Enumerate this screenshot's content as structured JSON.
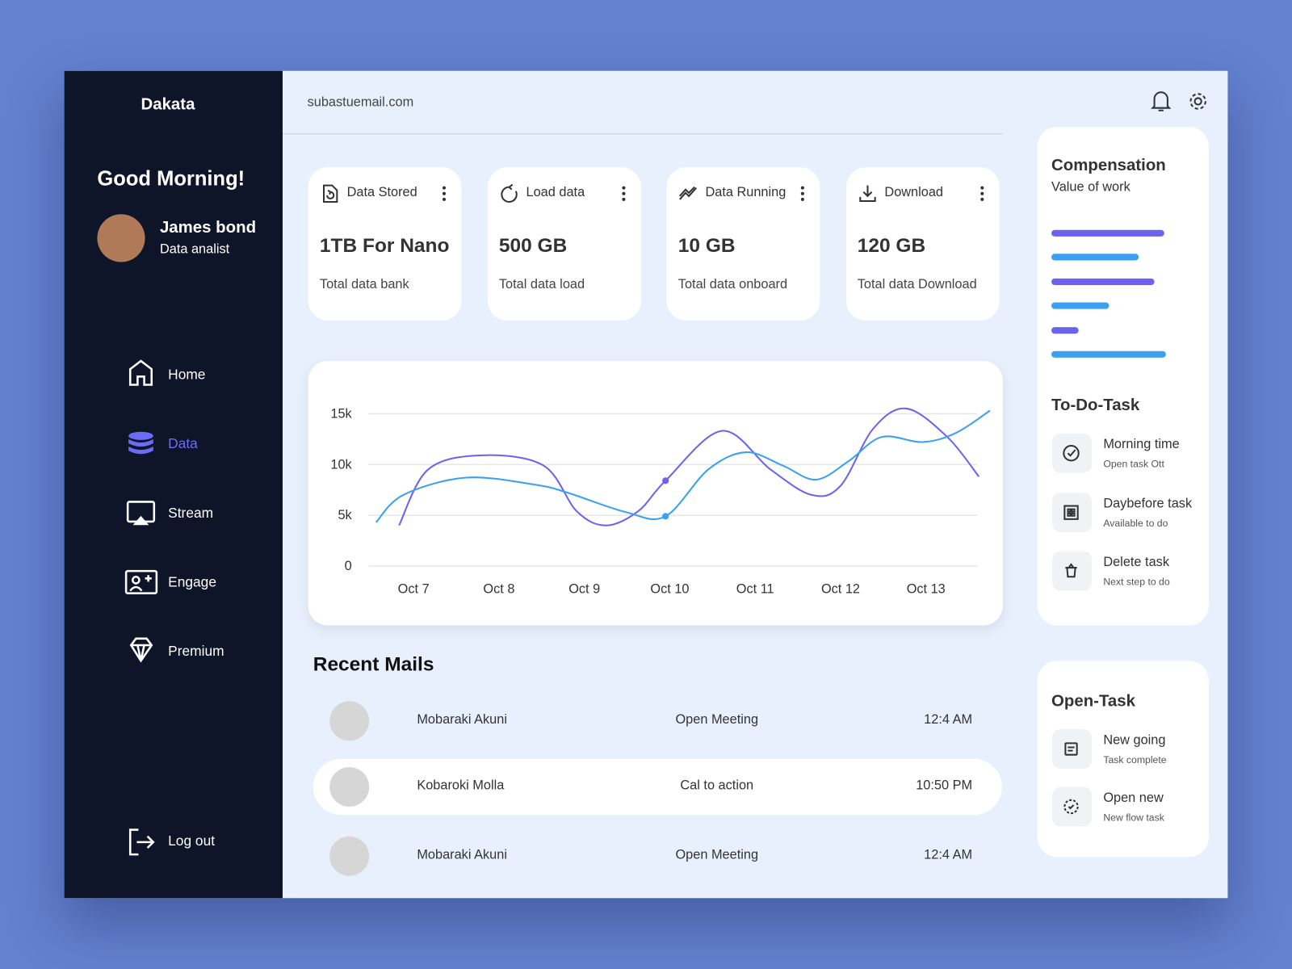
{
  "sidebar": {
    "brand": "Dakata",
    "greeting": "Good Morning!",
    "user": {
      "name": "James bond",
      "role": "Data analist"
    },
    "nav": [
      "Home",
      "Data",
      "Stream",
      "Engage",
      "Premium"
    ],
    "logout": "Log out"
  },
  "header": {
    "email": "subastuemail.com"
  },
  "stats": [
    {
      "title": "Data Stored",
      "value": "1TB For Nano",
      "caption": "Total data bank"
    },
    {
      "title": "Load data",
      "value": "500 GB",
      "caption": "Total data load"
    },
    {
      "title": "Data Running",
      "value": "10 GB",
      "caption": "Total data onboard"
    },
    {
      "title": "Download",
      "value": "120 GB",
      "caption": "Total data Download"
    }
  ],
  "chart_data": {
    "type": "line",
    "xlim": [
      6.47,
      13.6
    ],
    "ylim": [
      0,
      15000
    ],
    "xticks": [
      {
        "value": 7,
        "label": "Oct 7"
      },
      {
        "value": 8,
        "label": "Oct 8"
      },
      {
        "value": 9,
        "label": "Oct 9"
      },
      {
        "value": 10,
        "label": "Oct 10"
      },
      {
        "value": 11,
        "label": "Oct 11"
      },
      {
        "value": 12,
        "label": "Oct 12"
      },
      {
        "value": 13,
        "label": "Oct 13"
      }
    ],
    "yticks": [
      0,
      {
        "value": 5000,
        "label": "5k"
      },
      {
        "value": 10000,
        "label": "10k"
      },
      {
        "value": 15000,
        "label": "15k"
      }
    ],
    "grid": true,
    "highlight_x": 9.95,
    "series": [
      {
        "color": "#6b63f0",
        "x": [
          6.83,
          7.17,
          7.8,
          8.52,
          8.91,
          9.25,
          9.63,
          9.95,
          10.61,
          11.18,
          11.66,
          12.0,
          12.38,
          12.77,
          13.25,
          13.62
        ],
        "values": [
          4000,
          9500,
          10900,
          9900,
          5400,
          4000,
          5400,
          8400,
          13300,
          9500,
          7000,
          7900,
          13500,
          15500,
          12700,
          8800
        ]
      },
      {
        "color": "#3aa0f2",
        "x": [
          6.56,
          6.88,
          7.61,
          8.43,
          8.81,
          9.49,
          9.95,
          10.45,
          10.89,
          11.32,
          11.71,
          12.09,
          12.48,
          12.96,
          13.35,
          13.75
        ],
        "values": [
          4300,
          7000,
          8700,
          8000,
          7200,
          5300,
          4900,
          9500,
          11200,
          9900,
          8500,
          10300,
          12700,
          12200,
          13100,
          15300
        ]
      }
    ]
  },
  "recent_mails": {
    "title": "Recent Mails",
    "rows": [
      {
        "name": "Mobaraki Akuni",
        "subject": "Open Meeting",
        "time": "12:4 AM"
      },
      {
        "name": "Kobaroki Molla",
        "subject": "Cal to action",
        "time": "10:50 PM"
      },
      {
        "name": "Mobaraki Akuni",
        "subject": "Open Meeting",
        "time": "12:4 AM"
      }
    ]
  },
  "compensation": {
    "title": "Compensation",
    "subtitle": "Value of work"
  },
  "todo": {
    "title": "To-Do-Task",
    "items": [
      {
        "title": "Morning time",
        "subtitle": "Open task Ott"
      },
      {
        "title": "Daybefore task",
        "subtitle": "Available to do"
      },
      {
        "title": "Delete task",
        "subtitle": "Next step to do"
      }
    ]
  },
  "open_task": {
    "title": "Open-Task",
    "items": [
      {
        "title": "New going",
        "subtitle": "Task complete"
      },
      {
        "title": "Open new",
        "subtitle": "New flow task"
      }
    ]
  }
}
